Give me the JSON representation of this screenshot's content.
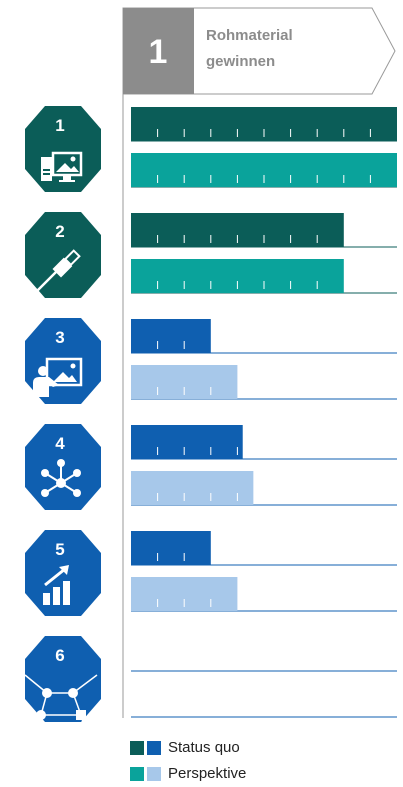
{
  "header": {
    "number": "1",
    "title_line1": "Rohmaterial",
    "title_line2": "gewinnen"
  },
  "legend": {
    "status_label": "Status quo",
    "perspective_label": "Perspektive"
  },
  "colors": {
    "teal_dark": "#0b5d58",
    "teal_light": "#0aa39b",
    "blue_dark": "#0f5fb0",
    "blue_light": "#a7c8ea",
    "badge_teal": "#0b5d58",
    "badge_blue": "#0f5fb0",
    "header_gray": "#8c8c8c"
  },
  "chart_data": {
    "type": "bar",
    "categories": [
      "1",
      "2",
      "3",
      "4",
      "5",
      "6"
    ],
    "icons": [
      "computer-image-icon",
      "usb-plug-icon",
      "presentation-icon",
      "network-node-icon",
      "growth-chart-icon",
      "network-graph-icon"
    ],
    "badge_colors": [
      "teal",
      "teal",
      "blue",
      "blue",
      "blue",
      "blue"
    ],
    "max": 10,
    "series": [
      {
        "name": "Status quo",
        "values": [
          10,
          8,
          3,
          4.2,
          3,
          0
        ]
      },
      {
        "name": "Perspektive",
        "values": [
          10,
          8,
          4,
          4.6,
          4,
          0
        ]
      }
    ]
  }
}
